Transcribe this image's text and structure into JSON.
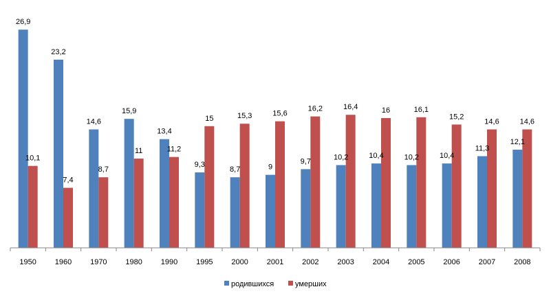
{
  "chart_data": {
    "type": "bar",
    "categories": [
      "1950",
      "1960",
      "1970",
      "1980",
      "1990",
      "1995",
      "2000",
      "2001",
      "2002",
      "2003",
      "2004",
      "2005",
      "2006",
      "2007",
      "2008"
    ],
    "series": [
      {
        "name": "родившихся",
        "color": "#4f81bd",
        "values": [
          26.9,
          23.2,
          14.6,
          15.9,
          13.4,
          9.3,
          8.7,
          9,
          9.7,
          10.2,
          10.4,
          10.2,
          10.4,
          11.3,
          12.1
        ],
        "labels": [
          "26,9",
          "23,2",
          "14,6",
          "15,9",
          "13,4",
          "9,3",
          "8,7",
          "9",
          "9,7",
          "10,2",
          "10,4",
          "10,2",
          "10,4",
          "11,3",
          "12,1"
        ]
      },
      {
        "name": "умерших",
        "color": "#c0504d",
        "values": [
          10.1,
          7.4,
          8.7,
          11,
          11.2,
          15,
          15.3,
          15.6,
          16.2,
          16.4,
          16,
          16.1,
          15.2,
          14.6,
          14.6
        ],
        "labels": [
          "10,1",
          "7,4",
          "8,7",
          "11",
          "11,2",
          "15",
          "15,3",
          "15,6",
          "16,2",
          "16,4",
          "16",
          "16,1",
          "15,2",
          "14,6",
          "14,6"
        ]
      }
    ],
    "ylim": [
      0,
      27
    ],
    "grid": false,
    "legend_position": "bottom"
  }
}
